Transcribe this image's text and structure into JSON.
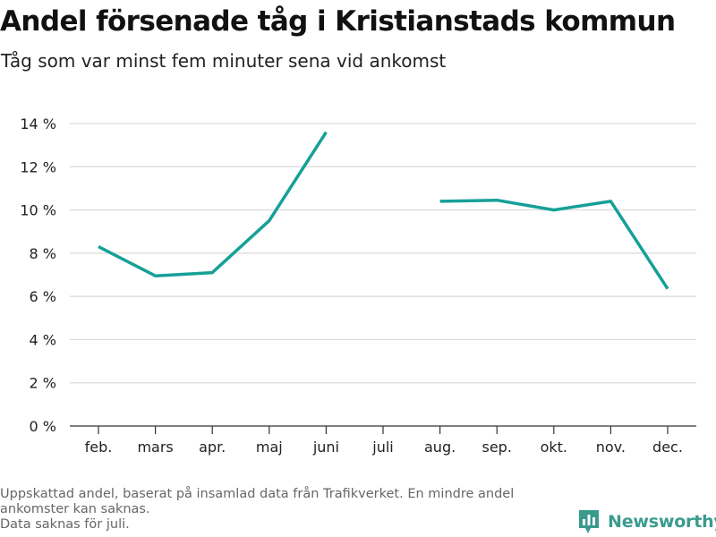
{
  "title": "Andel försenade tåg i Kristianstads kommun",
  "subtitle": "Tåg som var minst fem minuter sena vid ankomst",
  "footnote": [
    "Uppskattad andel, baserat på insamlad data från Trafikverket. En mindre andel",
    "ankomster kan saknas.",
    "Data saknas för juli."
  ],
  "brand": {
    "name": "Newsworthy",
    "icon": "bar-chart-logo-icon",
    "color": "#3a9a8e"
  },
  "chart_data": {
    "type": "line",
    "categories": [
      "feb.",
      "mars",
      "apr.",
      "maj",
      "juni",
      "juli",
      "aug.",
      "sep.",
      "okt.",
      "nov.",
      "dec."
    ],
    "series": [
      {
        "values": [
          8.3,
          6.95,
          7.1,
          9.5,
          13.6,
          null,
          10.4,
          10.45,
          10.0,
          10.4,
          6.35
        ]
      }
    ],
    "yticks": [
      "0 %",
      "2 %",
      "4 %",
      "6 %",
      "8 %",
      "10 %",
      "12 %",
      "14 %"
    ],
    "ylim": [
      0,
      14
    ],
    "grid": true,
    "line_color": "#16a097",
    "xlabel": "",
    "ylabel": ""
  }
}
